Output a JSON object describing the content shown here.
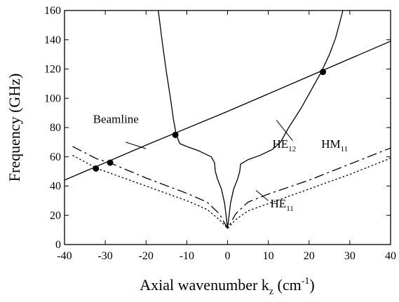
{
  "chart_data": {
    "type": "line",
    "xlabel": "Axial wavenumber k",
    "xlabel_sub": "z",
    "xlabel_unit_open": " (cm",
    "xlabel_unit_sup": "-1",
    "xlabel_unit_close": ")",
    "ylabel": "Frequency (GHz)",
    "xlim": [
      -40,
      40
    ],
    "ylim": [
      0,
      160
    ],
    "xticks": [
      -40,
      -30,
      -20,
      -10,
      0,
      10,
      20,
      30,
      40
    ],
    "yticks": [
      0,
      20,
      40,
      60,
      80,
      100,
      120,
      140,
      160
    ],
    "grid": false,
    "series": [
      {
        "name": "Beamline",
        "style": "solid",
        "points": [
          [
            -40,
            44
          ],
          [
            -20,
            68
          ],
          [
            0,
            91
          ],
          [
            20,
            115
          ],
          [
            40,
            139
          ]
        ]
      },
      {
        "name": "HE",
        "name_sub": "12",
        "style": "solid",
        "points": [
          [
            -17,
            160
          ],
          [
            -16,
            138
          ],
          [
            -15,
            118
          ],
          [
            -14,
            100
          ],
          [
            -13.3,
            86
          ],
          [
            -12.6,
            75
          ],
          [
            -11.7,
            69
          ],
          [
            -10,
            67
          ],
          [
            -7,
            64
          ],
          [
            -4,
            60
          ],
          [
            -3.2,
            56
          ],
          [
            -3,
            50
          ],
          [
            -2.5,
            45
          ],
          [
            -1.5,
            38
          ],
          [
            -0.7,
            28
          ],
          [
            0,
            11
          ]
        ]
      },
      {
        "name": "HE",
        "name_sub": "12",
        "style": "solid",
        "points": [
          [
            0,
            11
          ],
          [
            0.7,
            28
          ],
          [
            1.5,
            38
          ],
          [
            2.5,
            45
          ],
          [
            3,
            50
          ],
          [
            3.2,
            55
          ],
          [
            5,
            58
          ],
          [
            8,
            61
          ],
          [
            11,
            65
          ],
          [
            13,
            70
          ],
          [
            15,
            80
          ],
          [
            18,
            93
          ],
          [
            21,
            108
          ],
          [
            23,
            118
          ],
          [
            25,
            130
          ],
          [
            26.5,
            141
          ],
          [
            28.3,
            160
          ]
        ]
      },
      {
        "name": "HM",
        "name_sub": "11",
        "style": "dashdot",
        "points": [
          [
            -38,
            67
          ],
          [
            -32,
            58.5
          ],
          [
            -29,
            56
          ],
          [
            -20,
            45.5
          ],
          [
            -10,
            35
          ],
          [
            -5,
            29
          ],
          [
            -2,
            21
          ],
          [
            0,
            11
          ],
          [
            2,
            21
          ],
          [
            5,
            29
          ],
          [
            10,
            34.5
          ],
          [
            20,
            44
          ],
          [
            30,
            55
          ],
          [
            40,
            66
          ]
        ]
      },
      {
        "name": "HE",
        "name_sub": "11",
        "style": "dotted",
        "points": [
          [
            -38,
            61
          ],
          [
            -32,
            52
          ],
          [
            -20,
            40
          ],
          [
            -10,
            30
          ],
          [
            -5,
            24
          ],
          [
            -2,
            17
          ],
          [
            0,
            11
          ],
          [
            2,
            17
          ],
          [
            5,
            23
          ],
          [
            10,
            28
          ],
          [
            20,
            38
          ],
          [
            30,
            48
          ],
          [
            40,
            59
          ]
        ]
      }
    ],
    "markers": [
      [
        -32.3,
        52
      ],
      [
        -28.8,
        56
      ],
      [
        -12.8,
        75
      ],
      [
        23.4,
        118
      ]
    ],
    "annotations": [
      {
        "text": "Beamline",
        "sub": "",
        "x": -33,
        "y": 83,
        "pointer": [
          [
            -25,
            70
          ],
          [
            -20,
            65.5
          ]
        ]
      },
      {
        "text": "HE",
        "sub": "12",
        "x": 11,
        "y": 66,
        "pointer": [
          [
            16,
            71
          ],
          [
            12,
            85
          ]
        ]
      },
      {
        "text": "HM",
        "sub": "11",
        "x": 23,
        "y": 66,
        "pointer": []
      },
      {
        "text": "HE",
        "sub": "11",
        "x": 10.5,
        "y": 25.5,
        "pointer": [
          [
            10,
            30
          ],
          [
            7,
            37
          ]
        ]
      }
    ]
  }
}
